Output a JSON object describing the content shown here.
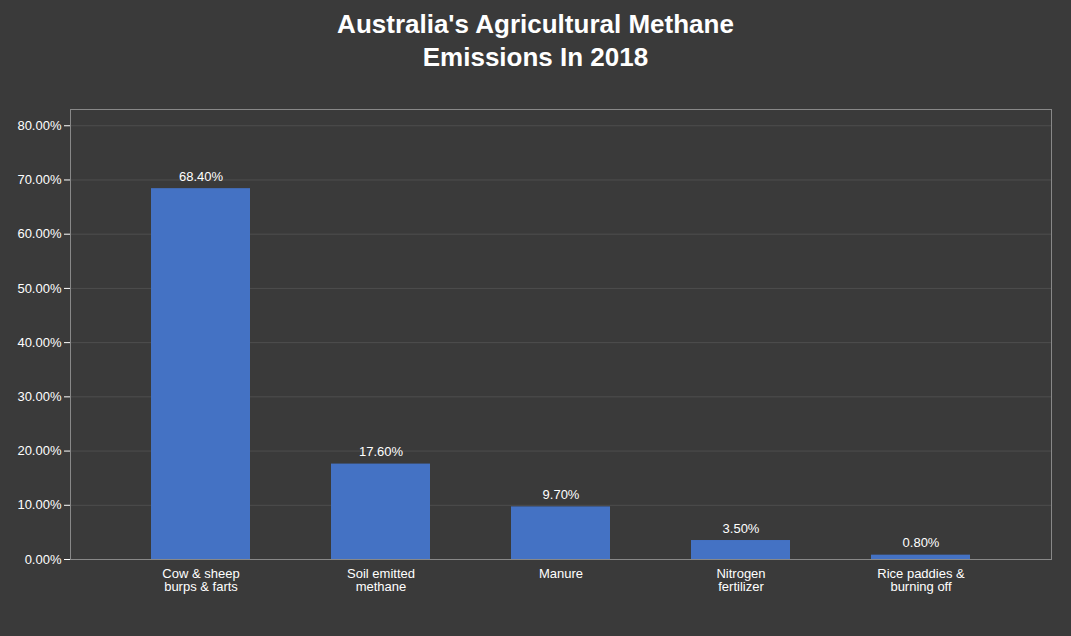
{
  "chart_data": {
    "type": "bar",
    "title": "Australia's Agricultural Methane\nEmissions In 2018",
    "categories": [
      "Cow & sheep\nburps & farts",
      "Soil emitted\nmethane",
      "Manure",
      "Nitrogen\nfertilizer",
      "Rice paddies &\nburning off"
    ],
    "values": [
      68.4,
      17.6,
      9.7,
      3.5,
      0.8
    ],
    "value_labels": [
      "68.40%",
      "17.60%",
      "9.70%",
      "3.50%",
      "0.80%"
    ],
    "data_labels": true,
    "color": "#4472C4",
    "ylim": [
      0,
      83
    ],
    "yticks": [
      {
        "value": 0,
        "label": "0.00%"
      },
      {
        "value": 10,
        "label": "10.00%"
      },
      {
        "value": 20,
        "label": "20.00%"
      },
      {
        "value": 30,
        "label": "30.00%"
      },
      {
        "value": 40,
        "label": "40.00%"
      },
      {
        "value": 50,
        "label": "50.00%"
      },
      {
        "value": 60,
        "label": "60.00%"
      },
      {
        "value": 70,
        "label": "70.00%"
      },
      {
        "value": 80,
        "label": "80.00%"
      }
    ],
    "grid": true
  }
}
